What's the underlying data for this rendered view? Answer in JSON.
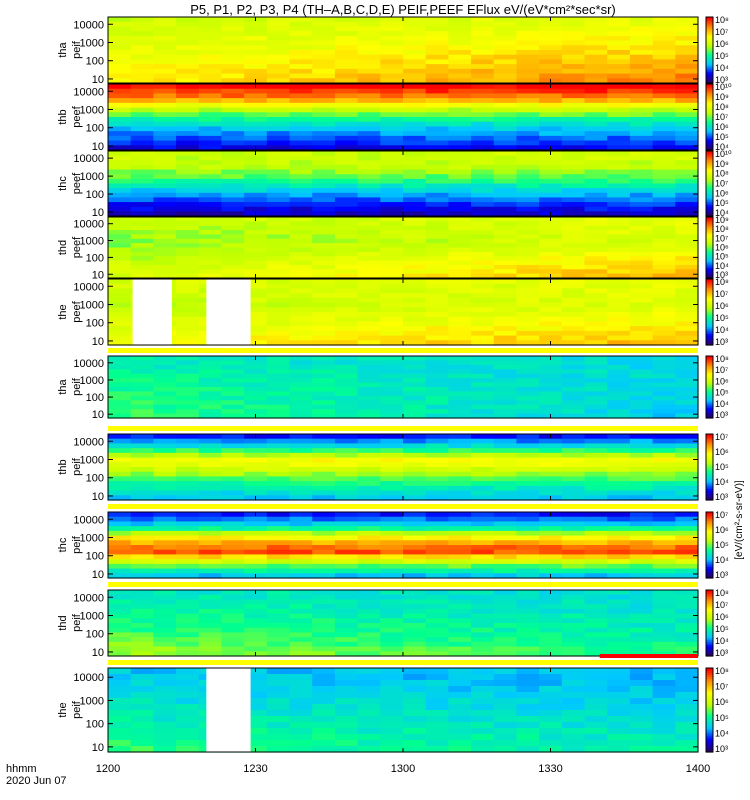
{
  "title": "P5, P1, P2, P3, P4 (TH–A,B,C,D,E) PEIF,PEEF EFlux eV/(eV*cm²*sec*sr)",
  "footer": {
    "hhmm": "hhmm",
    "date": "2020 Jun 07"
  },
  "colorbar_label": "[eV/(cm²-s-sr-eV)]",
  "chart_data": {
    "type": "heatmap",
    "x_ticks": [
      "1200",
      "1230",
      "1300",
      "1330",
      "1400"
    ],
    "x_range": [
      "12:00",
      "14:00"
    ],
    "y_scale": "log",
    "y_range": [
      6,
      25000
    ],
    "y_ticks": [
      "10",
      "100",
      "1000",
      "10000"
    ],
    "panels": [
      {
        "name": "tha peif",
        "label": [
          "tha",
          "peif"
        ],
        "cb_ticks": [
          "10³",
          "10⁴",
          "10⁵",
          "10⁶",
          "10⁷",
          "10⁸"
        ],
        "flux_profile": [
          0.6,
          0.62,
          0.64,
          0.67,
          0.7,
          0.72
        ],
        "trend": 0.12,
        "bands": [],
        "gaps": []
      },
      {
        "name": "thb peef",
        "label": [
          "thb",
          "peef"
        ],
        "cb_ticks": [
          "10⁴",
          "10⁵",
          "10⁶",
          "10⁷",
          "10⁸",
          "10⁹",
          "10¹⁰"
        ],
        "flux_profile": [
          1.0,
          0.85,
          0.55,
          0.35,
          0.22,
          0.12
        ],
        "trend": 0.02,
        "bands": [],
        "gaps": []
      },
      {
        "name": "thc peef",
        "label": [
          "thc",
          "peef"
        ],
        "cb_ticks": [
          "10⁴",
          "10⁵",
          "10⁶",
          "10⁷",
          "10⁸",
          "10⁹",
          "10¹⁰"
        ],
        "flux_profile": [
          0.6,
          0.58,
          0.48,
          0.32,
          0.18,
          0.08
        ],
        "trend": 0.02,
        "bands": [],
        "gaps": []
      },
      {
        "name": "thd peef",
        "label": [
          "thd",
          "peef"
        ],
        "cb_ticks": [
          "10³",
          "10⁴",
          "10⁵",
          "10⁶",
          "10⁷",
          "10⁸",
          "10⁹"
        ],
        "flux_profile": [
          0.58,
          0.55,
          0.52,
          0.55,
          0.6,
          0.62
        ],
        "trend": 0.15,
        "bands": [],
        "gaps": []
      },
      {
        "name": "the peef",
        "label": [
          "the",
          "peef"
        ],
        "cb_ticks": [
          "10³",
          "10⁴",
          "10⁵",
          "10⁶",
          "10⁷",
          "10⁸"
        ],
        "flux_profile": [
          0.62,
          0.6,
          0.58,
          0.62,
          0.66,
          0.7
        ],
        "trend": 0.08,
        "bands": [],
        "gaps": [
          [
            "12:05",
            "12:13"
          ],
          [
            "12:20",
            "12:29"
          ]
        ]
      },
      {
        "name": "tha peif",
        "label": [
          "tha",
          "peif"
        ],
        "cb_ticks": [
          "10³",
          "10⁴",
          "10⁵",
          "10⁶",
          "10⁷",
          "10⁸"
        ],
        "flux_profile": [
          0.38,
          0.4,
          0.42,
          0.44,
          0.45,
          0.46
        ],
        "trend": -0.12,
        "bands": [
          {
            "color": "#ffff00"
          }
        ],
        "gaps": []
      },
      {
        "name": "thb peif",
        "label": [
          "thb",
          "peif"
        ],
        "cb_ticks": [
          "10³",
          "10⁴",
          "10⁵",
          "10⁶",
          "10⁷"
        ],
        "flux_profile": [
          0.15,
          0.4,
          0.72,
          0.55,
          0.4,
          0.3
        ],
        "trend": 0.0,
        "bands": [
          {
            "color": "#ffff00"
          }
        ],
        "gaps": []
      },
      {
        "name": "thc peif",
        "label": [
          "thc",
          "peif"
        ],
        "cb_ticks": [
          "10³",
          "10⁴",
          "10⁵",
          "10⁶",
          "10⁷"
        ],
        "flux_profile": [
          0.15,
          0.35,
          0.75,
          0.95,
          0.55,
          0.3
        ],
        "trend": 0.0,
        "bands": [
          {
            "color": "#ffff00"
          }
        ],
        "gaps": []
      },
      {
        "name": "thd peif",
        "label": [
          "thd",
          "peif"
        ],
        "cb_ticks": [
          "10³",
          "10⁴",
          "10⁵",
          "10⁶",
          "10⁷",
          "10⁸"
        ],
        "flux_profile": [
          0.38,
          0.4,
          0.43,
          0.46,
          0.5,
          0.55
        ],
        "trend": -0.08,
        "bands": [
          {
            "color": "#ffff00"
          }
        ],
        "gaps": []
      },
      {
        "name": "the peif",
        "label": [
          "the",
          "peif"
        ],
        "cb_ticks": [
          "10³",
          "10⁴",
          "10⁵",
          "10⁶",
          "10⁷",
          "10⁸"
        ],
        "flux_profile": [
          0.3,
          0.32,
          0.35,
          0.38,
          0.42,
          0.45
        ],
        "trend": -0.05,
        "bands": [
          {
            "color": "#ffff00"
          },
          {
            "color": "#ff0000",
            "start": "13:40",
            "end": "14:00"
          }
        ],
        "gaps": [
          [
            "12:20",
            "12:29"
          ]
        ]
      }
    ],
    "colormap": [
      "#2a0060",
      "#0000ff",
      "#00c8ff",
      "#00ff90",
      "#c0ff00",
      "#ffff00",
      "#ff9000",
      "#ff0000"
    ],
    "grid": false
  }
}
